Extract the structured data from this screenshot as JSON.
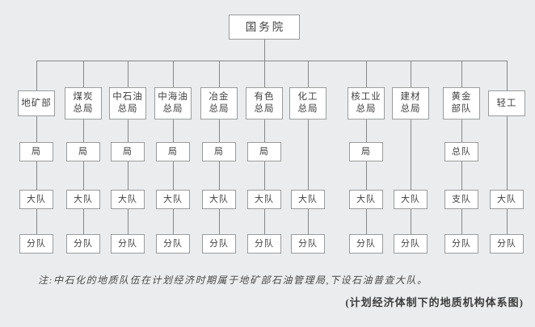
{
  "colors": {
    "background": "#ebeced",
    "line": "#878787",
    "box_border": "#9b9b9b",
    "box_fill": "#ffffff",
    "text": "#3f3f3f"
  },
  "chart": {
    "root": "国务院",
    "columns": [
      {
        "name": "地矿部",
        "levels": [
          "局",
          "大队",
          "分队"
        ]
      },
      {
        "name": "煤炭\n总局",
        "levels": [
          "局",
          "大队",
          "分队"
        ]
      },
      {
        "name": "中石油\n总局",
        "levels": [
          "局",
          "大队",
          "分队"
        ]
      },
      {
        "name": "中海油\n总局",
        "levels": [
          "局",
          "大队",
          "分队"
        ]
      },
      {
        "name": "冶金\n总局",
        "levels": [
          "局",
          "大队",
          "分队"
        ]
      },
      {
        "name": "有色\n总局",
        "levels": [
          "局",
          "大队",
          "分队"
        ]
      },
      {
        "name": "化工\n总局",
        "levels": [
          null,
          "大队",
          "分队"
        ]
      },
      {
        "name": "核工业\n总局",
        "levels": [
          "局",
          "大队",
          "分队"
        ]
      },
      {
        "name": "建材\n总局",
        "levels": [
          null,
          "大队",
          "分队"
        ]
      },
      {
        "name": "黄金\n部队",
        "levels": [
          "总队",
          "支队",
          "分队"
        ]
      },
      {
        "name": "轻工",
        "levels": [
          null,
          "大队",
          "分队"
        ]
      }
    ]
  },
  "note": "注:中石化的地质队伍在计划经济时期属于地矿部石油管理局,下设石油普查大队。",
  "caption": "(计划经济体制下的地质机构体系图)"
}
